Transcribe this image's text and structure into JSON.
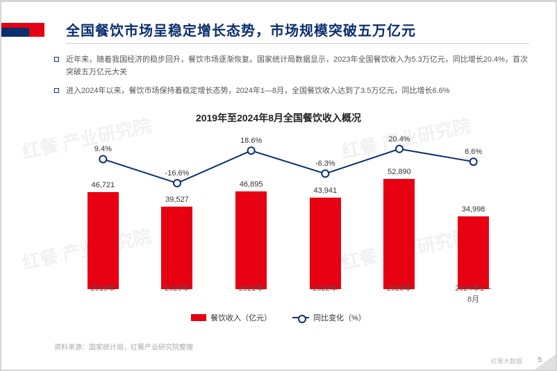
{
  "title": "全国餐饮市场呈稳定增长态势，市场规模突破五万亿元",
  "bullets": [
    "近年来，随着我国经济的稳步回升，餐饮市场逐渐恢复。国家统计局数据显示，2023年全国餐饮收入为5.3万亿元，同比增长20.4%，首次突破五万亿元大关",
    "进入2024年以来，餐饮市场保持着稳定增长态势，2024年1—8月，全国餐饮收入达到了3.5万亿元，同比增长6.6%"
  ],
  "chart": {
    "title": "2019年至2024年8月全国餐饮收入概况",
    "type": "bar+line",
    "categories": [
      "2019年",
      "2020年",
      "2021年",
      "2022年",
      "2023年",
      "2024年1—8月"
    ],
    "bar_values": [
      46721,
      39527,
      46895,
      43941,
      52890,
      34998
    ],
    "bar_value_labels": [
      "46,721",
      "39,527",
      "46,895",
      "43,941",
      "52,890",
      "34,998"
    ],
    "bar_color": "#e60012",
    "bar_max": 60000,
    "line_values": [
      9.4,
      -16.6,
      18.6,
      -6.3,
      20.4,
      6.6
    ],
    "line_labels": [
      "9.4%",
      "-16.6%",
      "18.6%",
      "-6.3%",
      "20.4%",
      "6.6%"
    ],
    "line_color": "#0a2f6e",
    "line_width": 2,
    "marker_radius": 5,
    "marker_fill": "#ffffff",
    "line_y_min": -30,
    "line_y_max": 30,
    "label_fontsize": 11,
    "title_fontsize": 14,
    "background_color": "#ffffff"
  },
  "legend": {
    "bar": "餐饮收入（亿元）",
    "line": "同比变化（%）"
  },
  "source": "资料来源：国家统计局，红餐产业研究院整理",
  "page_number": "5",
  "footer_logo": "红餐大数据",
  "watermark": "红餐 产业研究院",
  "colors": {
    "primary_red": "#e60012",
    "primary_blue": "#0a2f6e",
    "text_dark": "#222222",
    "text_gray": "#555555",
    "border_gray": "#d5d5d5"
  }
}
